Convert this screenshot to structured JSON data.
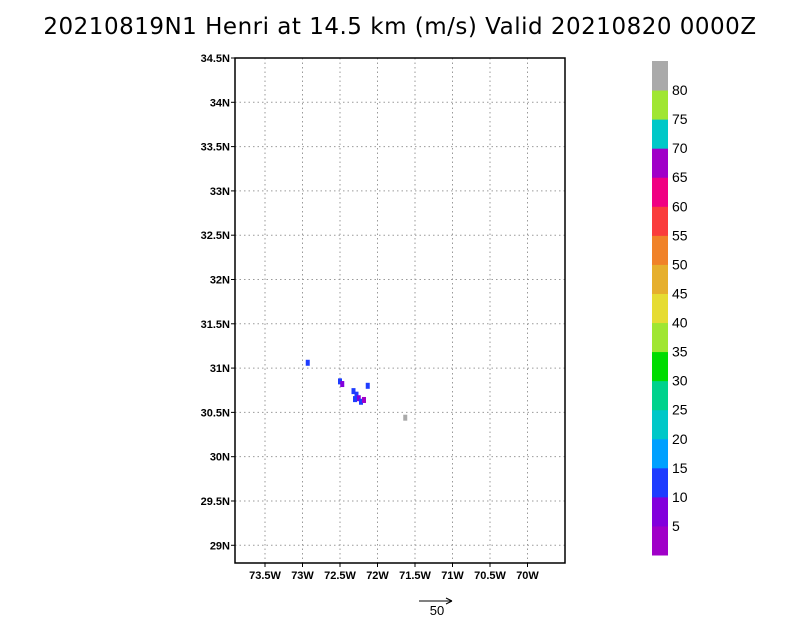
{
  "title": "20210819N1 Henri at 14.5 km (m/s) Valid 20210820 0000Z",
  "map": {
    "lat_labels": [
      "34.5N",
      "34N",
      "33.5N",
      "33N",
      "32.5N",
      "32N",
      "31.5N",
      "31N",
      "30.5N",
      "30N",
      "29.5N",
      "29N"
    ],
    "lat_values": [
      34.5,
      34,
      33.5,
      33,
      32.5,
      32,
      31.5,
      31,
      30.5,
      30,
      29.5,
      29
    ],
    "lon_labels": [
      "73.5W",
      "73W",
      "72.5W",
      "72W",
      "71.5W",
      "71W",
      "70.5W",
      "70W"
    ],
    "lon_values": [
      -73.5,
      -73,
      -72.5,
      -72,
      -71.5,
      -71,
      -70.5,
      -70
    ],
    "lat_range": [
      28.8,
      34.5
    ],
    "lon_range": [
      -73.9,
      -69.5
    ]
  },
  "colorbar": {
    "labels": [
      "5",
      "10",
      "15",
      "20",
      "25",
      "30",
      "35",
      "40",
      "45",
      "50",
      "55",
      "60",
      "65",
      "70",
      "75",
      "80"
    ],
    "colors": [
      "#a000c8",
      "#8200dc",
      "#1e3cff",
      "#00a0ff",
      "#00c8c8",
      "#00d28c",
      "#00dc00",
      "#a0e632",
      "#e6dc32",
      "#e6af2d",
      "#f08228",
      "#fa3c3c",
      "#f00082",
      "#a000c8",
      "#00c8c8",
      "#a0e632",
      "#aaaaaa"
    ]
  },
  "reference_vector": {
    "label": "50"
  },
  "data_blobs": [
    {
      "lon": -72.93,
      "lat": 31.06,
      "color": "#1e3cff"
    },
    {
      "lon": -72.5,
      "lat": 30.85,
      "color": "#1e3cff"
    },
    {
      "lon": -72.47,
      "lat": 30.82,
      "color": "#8200dc"
    },
    {
      "lon": -72.32,
      "lat": 30.74,
      "color": "#1e3cff"
    },
    {
      "lon": -72.28,
      "lat": 30.7,
      "color": "#1e3cff"
    },
    {
      "lon": -72.25,
      "lat": 30.66,
      "color": "#8200dc"
    },
    {
      "lon": -72.3,
      "lat": 30.65,
      "color": "#1e3cff"
    },
    {
      "lon": -72.22,
      "lat": 30.62,
      "color": "#1e3cff"
    },
    {
      "lon": -72.18,
      "lat": 30.64,
      "color": "#a000c8"
    },
    {
      "lon": -72.13,
      "lat": 30.8,
      "color": "#1e3cff"
    },
    {
      "lon": -71.63,
      "lat": 30.44,
      "color": "#aaaaaa"
    }
  ]
}
